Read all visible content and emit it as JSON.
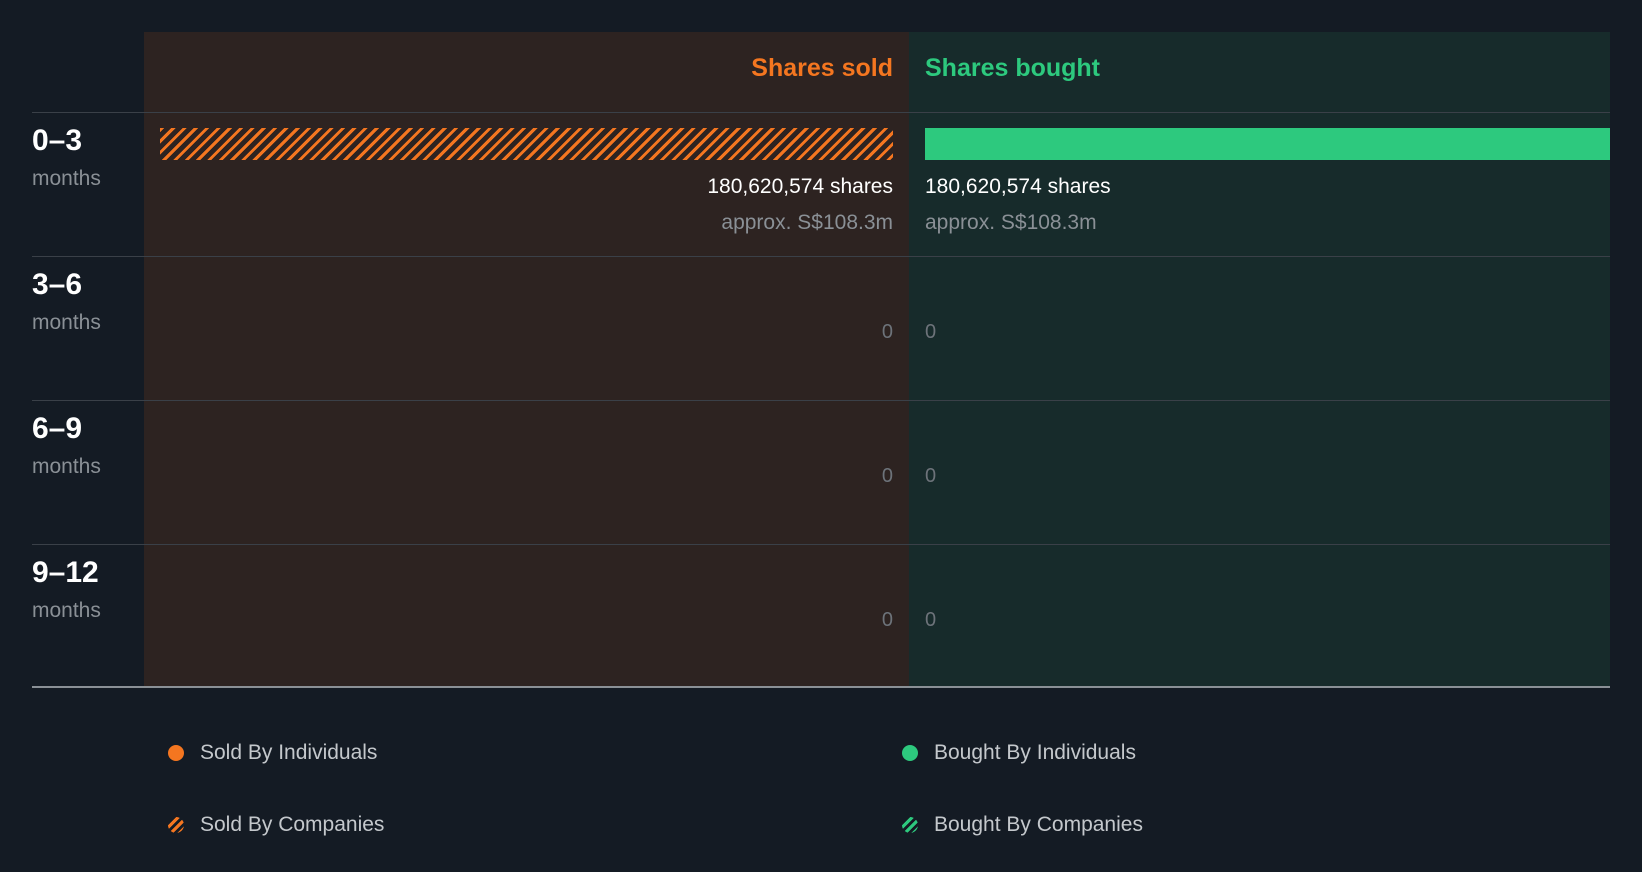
{
  "chart_data": {
    "type": "bar",
    "headers": {
      "sold": "Shares sold",
      "bought": "Shares bought"
    },
    "categories": [
      {
        "range": "0–3",
        "unit": "months"
      },
      {
        "range": "3–6",
        "unit": "months"
      },
      {
        "range": "6–9",
        "unit": "months"
      },
      {
        "range": "9–12",
        "unit": "months"
      }
    ],
    "series": [
      {
        "name": "Shares sold",
        "values": [
          180620574,
          0,
          0,
          0
        ],
        "labels": [
          "180,620,574 shares",
          "0",
          "0",
          "0"
        ],
        "approx": [
          "approx. S$108.3m",
          "",
          "",
          ""
        ],
        "pattern": "Sold By Companies"
      },
      {
        "name": "Shares bought",
        "values": [
          180620574,
          0,
          0,
          0
        ],
        "labels": [
          "180,620,574 shares",
          "0",
          "0",
          "0"
        ],
        "approx": [
          "approx. S$108.3m",
          "",
          "",
          ""
        ],
        "pattern": "Bought By Individuals"
      }
    ],
    "legend": [
      {
        "label": "Sold By Individuals",
        "icon": "dot-sold-ind"
      },
      {
        "label": "Bought By Individuals",
        "icon": "dot-bought-ind"
      },
      {
        "label": "Sold By Companies",
        "icon": "dot-sold-co"
      },
      {
        "label": "Bought By Companies",
        "icon": "dot-bought-co"
      }
    ],
    "colors": {
      "sold": "#f47620",
      "bought": "#2dc97e"
    }
  }
}
